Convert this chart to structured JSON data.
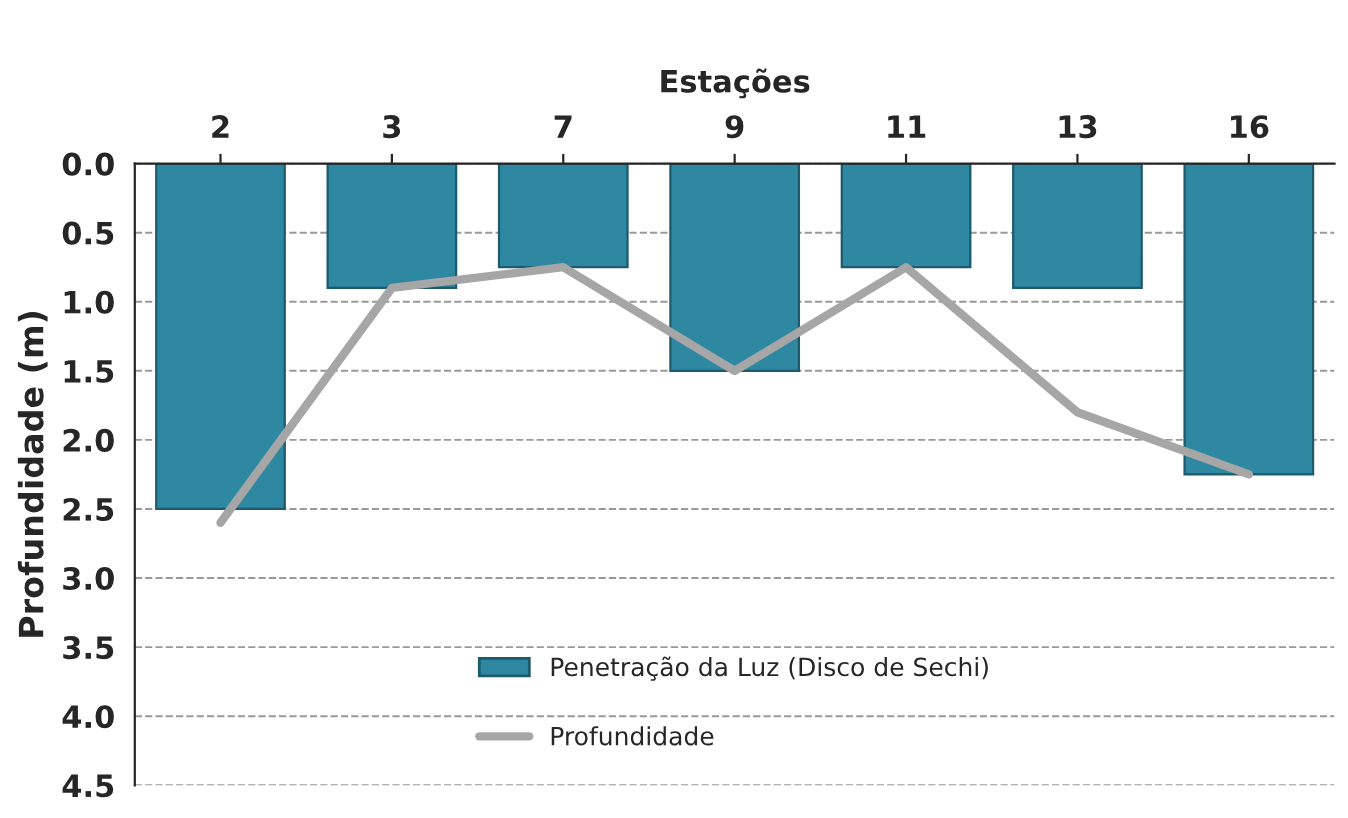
{
  "chart_data": {
    "type": "bar",
    "xlabel": "Estações",
    "ylabel": "Profundidade (m)",
    "categories": [
      "2",
      "3",
      "7",
      "9",
      "11",
      "13",
      "16"
    ],
    "series": [
      {
        "name": "Penetração da Luz (Disco de Sechi)",
        "color": "#2e88a2",
        "values": [
          2.5,
          0.9,
          0.75,
          1.5,
          0.75,
          0.9,
          2.25
        ]
      },
      {
        "name": "Profundidade",
        "type": "line",
        "color": "#a6a6a6",
        "values": [
          2.6,
          0.9,
          0.75,
          1.5,
          0.75,
          1.8,
          2.25
        ]
      }
    ],
    "ylim": [
      4.5,
      0
    ],
    "yticks": [
      {
        "value": 0,
        "label": "0.0"
      },
      {
        "value": 0.5,
        "label": "0.5"
      },
      {
        "value": 1,
        "label": "1.0"
      },
      {
        "value": 1.5,
        "label": "1.5"
      },
      {
        "value": 2,
        "label": "2.0"
      },
      {
        "value": 2.5,
        "label": "2.5"
      },
      {
        "value": 3,
        "label": "3.0"
      },
      {
        "value": 3.5,
        "label": "3.5"
      },
      {
        "value": 4,
        "label": "4.0"
      },
      {
        "value": 4.5,
        "label": "4.5"
      }
    ],
    "grid": "y",
    "legend": "bottom",
    "marker": "none",
    "line_style": "solid"
  }
}
